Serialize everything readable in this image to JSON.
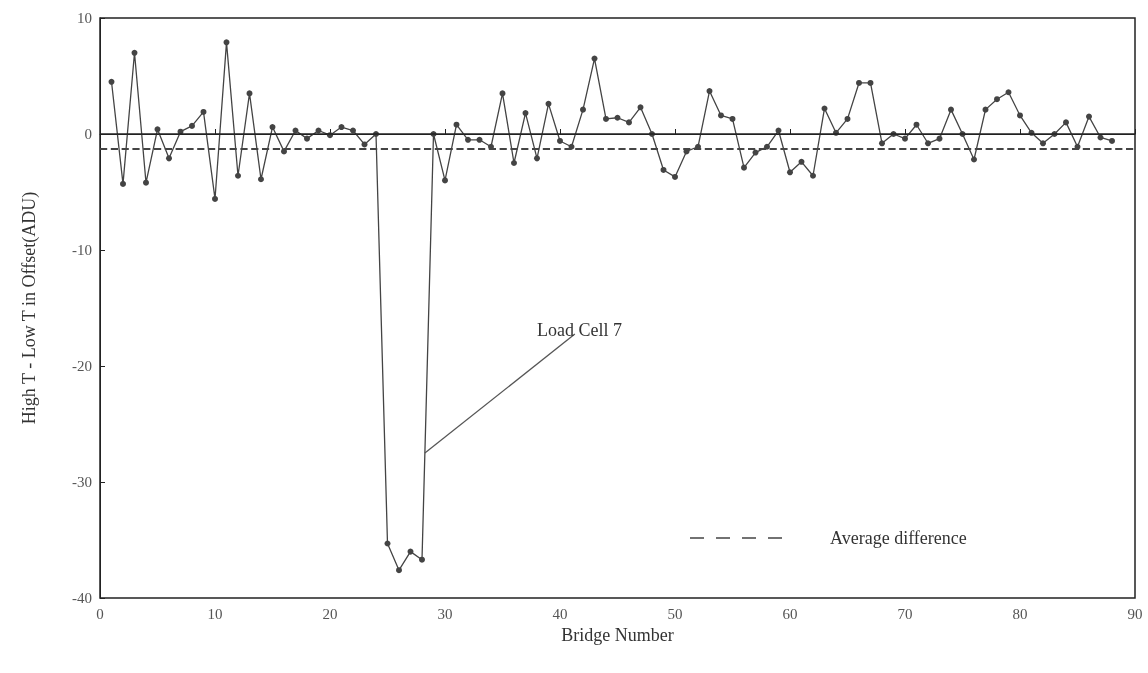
{
  "chart_data": {
    "type": "line",
    "xlabel": "Bridge Number",
    "ylabel": "High T - Low T in Offset(ADU)",
    "x": [
      1,
      2,
      3,
      4,
      5,
      6,
      7,
      8,
      9,
      10,
      11,
      12,
      13,
      14,
      15,
      16,
      17,
      18,
      19,
      20,
      21,
      22,
      23,
      24,
      25,
      26,
      27,
      28,
      29,
      30,
      31,
      32,
      33,
      34,
      35,
      36,
      37,
      38,
      39,
      40,
      41,
      42,
      43,
      44,
      45,
      46,
      47,
      48,
      49,
      50,
      51,
      52,
      53,
      54,
      55,
      56,
      57,
      58,
      59,
      60,
      61,
      62,
      63,
      64,
      65,
      66,
      67,
      68,
      69,
      70,
      71,
      72,
      73,
      74,
      75,
      76,
      77,
      78,
      79,
      80,
      81,
      82,
      83,
      84,
      85,
      86,
      87,
      88
    ],
    "series": [
      {
        "color": "#444444",
        "values": [
          4.5,
          -4.3,
          7.0,
          -4.2,
          0.4,
          -2.1,
          0.2,
          0.7,
          1.9,
          -5.6,
          7.9,
          -3.6,
          3.5,
          -3.9,
          0.6,
          -1.5,
          0.3,
          -0.4,
          0.3,
          -0.1,
          0.6,
          0.3,
          -0.9,
          0,
          -35.3,
          -37.6,
          -36,
          -36.7,
          0,
          -4,
          0.8,
          -0.5,
          -0.5,
          -1.1,
          3.5,
          -2.5,
          1.8,
          -2.1,
          2.6,
          -0.6,
          -1.1,
          2.1,
          6.5,
          1.3,
          1.4,
          1.0,
          2.3,
          0,
          -3.1,
          -3.7,
          -1.5,
          -1.1,
          3.7,
          1.6,
          1.3,
          -2.9,
          -1.6,
          -1.1,
          0.3,
          -3.3,
          -2.4,
          -3.6,
          2.2,
          0.1,
          1.3,
          4.4,
          4.4,
          -0.8,
          0,
          -0.4,
          0.8,
          -0.8,
          -0.4,
          2.1,
          0,
          -2.2,
          2.1,
          3.0,
          3.6,
          1.6,
          0.1,
          -0.8,
          0,
          1.0,
          -1.1,
          1.5,
          -0.3,
          -0.6
        ]
      }
    ],
    "xlim": [
      0,
      90
    ],
    "xticks": [
      0,
      10,
      20,
      30,
      40,
      50,
      60,
      70,
      80,
      90
    ],
    "ylim": [
      -40,
      10
    ],
    "yticks": [
      -40,
      -30,
      -20,
      -10,
      0,
      10
    ],
    "ref_lines": [
      {
        "axis": "y",
        "value": 0,
        "line_style": "solid",
        "color": "#222222"
      },
      {
        "axis": "y",
        "value": -1.3,
        "label": "Average difference",
        "line_style": "dashed",
        "color": "#444444"
      }
    ],
    "annotations": [
      {
        "text": "Load Cell 7",
        "x": 28.25,
        "y": -27.5
      }
    ],
    "marker": "circle",
    "line_style": "solid",
    "grid": false
  }
}
